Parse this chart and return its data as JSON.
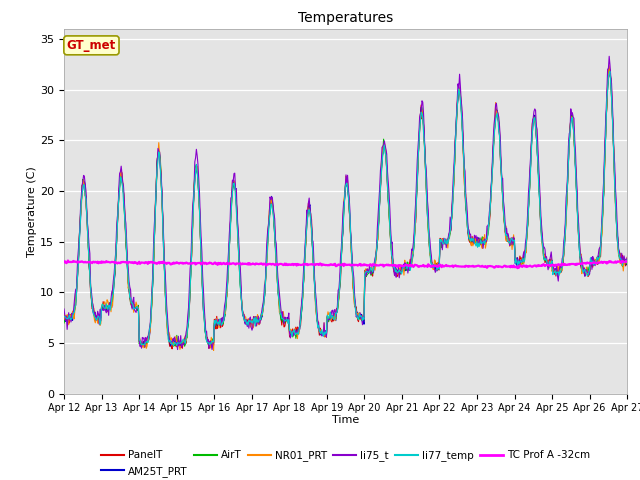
{
  "title": "Temperatures",
  "xlabel": "Time",
  "ylabel": "Temperature (C)",
  "ylim": [
    0,
    36
  ],
  "yticks": [
    0,
    5,
    10,
    15,
    20,
    25,
    30,
    35
  ],
  "xlim": [
    0,
    15
  ],
  "background_color": "#ffffff",
  "plot_bg_color": "#e4e4e4",
  "annotation_text": "GT_met",
  "annotation_fgcolor": "#cc0000",
  "annotation_bgcolor": "#ffffcc",
  "series_colors": {
    "PanelT": "#dd0000",
    "AM25T_PRT": "#0000cc",
    "AirT": "#00bb00",
    "NR01_PRT": "#ff8800",
    "li75_t": "#8800cc",
    "li77_temp": "#00cccc",
    "TC Prof A -32cm": "#ff00ff"
  },
  "legend_ncol_row1": 6,
  "figsize": [
    6.4,
    4.8
  ],
  "dpi": 100
}
